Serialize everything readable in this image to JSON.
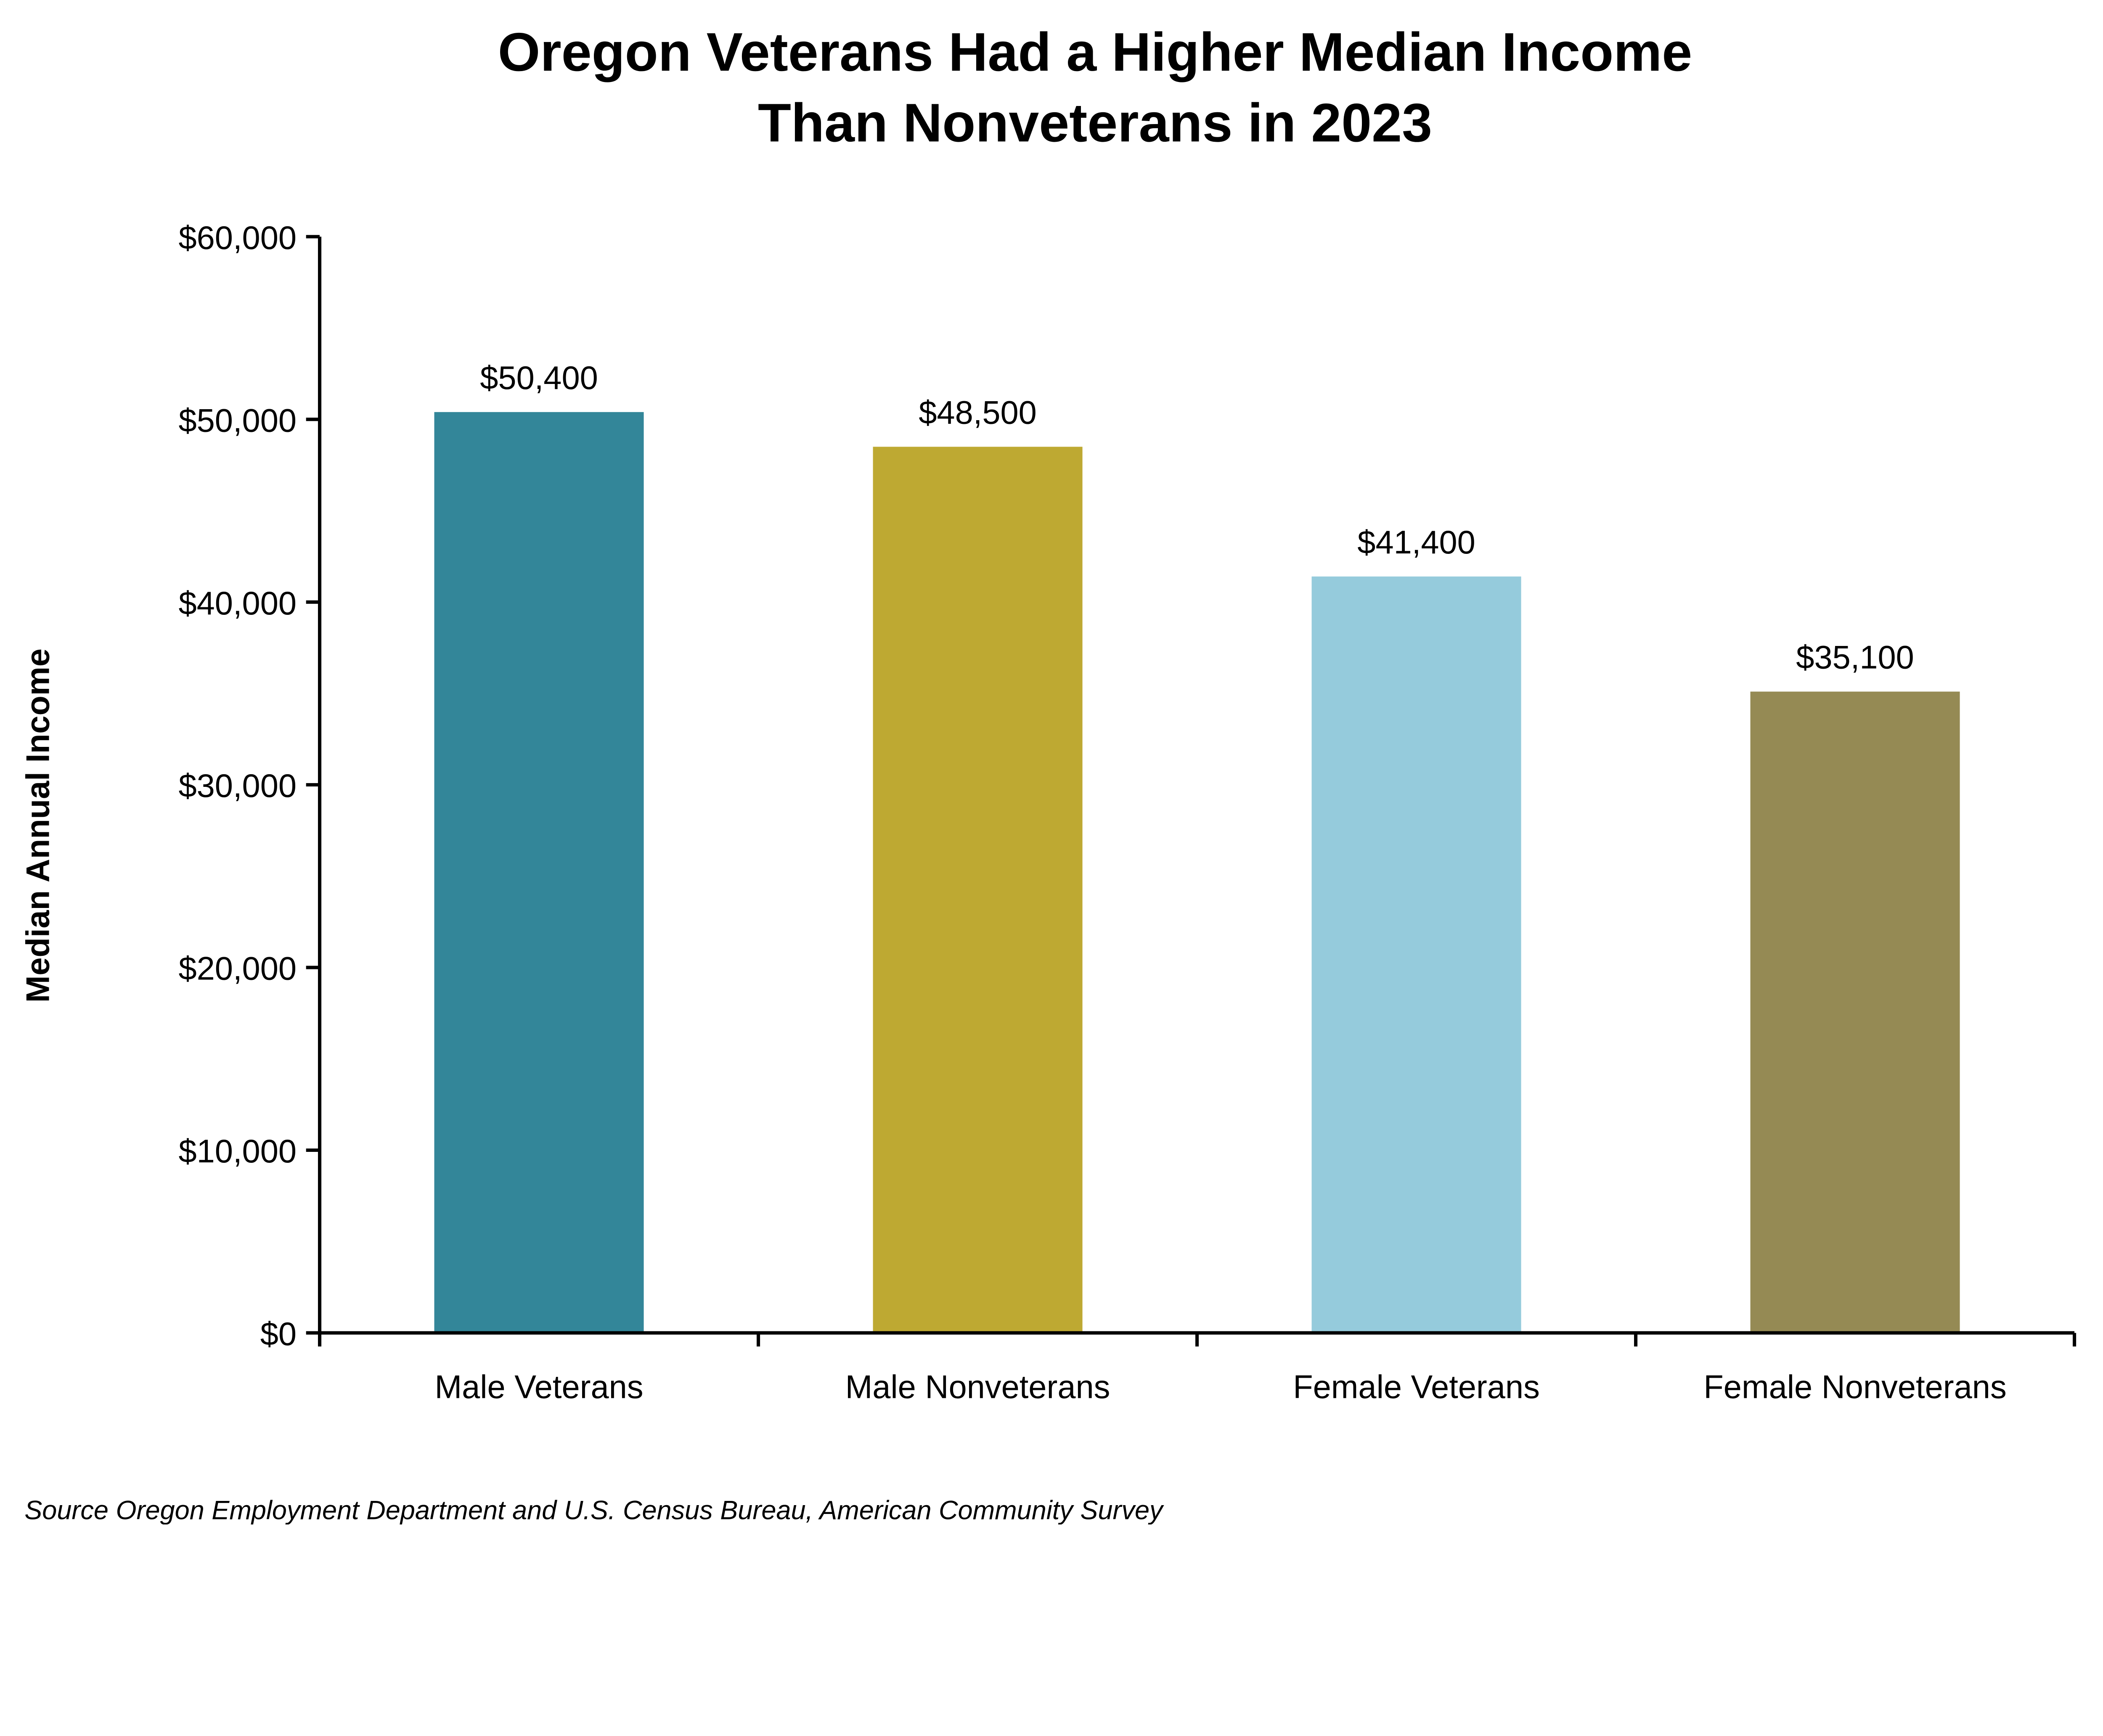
{
  "chart_data": {
    "type": "bar",
    "title_lines": [
      "Oregon Veterans Had a Higher Median Income",
      "Than Nonveterans in 2023"
    ],
    "xlabel": "",
    "ylabel": "Median Annual Income",
    "ylim": [
      0,
      60000
    ],
    "yticks": [
      0,
      10000,
      20000,
      30000,
      40000,
      50000,
      60000
    ],
    "ytick_labels": [
      "$0",
      "$10,000",
      "$20,000",
      "$30,000",
      "$40,000",
      "$50,000",
      "$60,000"
    ],
    "categories": [
      "Male Veterans",
      "Male Nonveterans",
      "Female Veterans",
      "Female Nonveterans"
    ],
    "values": [
      50400,
      48500,
      41400,
      35100
    ],
    "data_labels": [
      "$50,400",
      "$48,500",
      "$41,400",
      "$35,100"
    ],
    "colors": [
      "#338699",
      "#BEA932",
      "#95CBDC",
      "#958A54"
    ],
    "grid": false,
    "legend": "none",
    "source": "Source Oregon Employment Department and U.S. Census Bureau, American Community Survey"
  }
}
